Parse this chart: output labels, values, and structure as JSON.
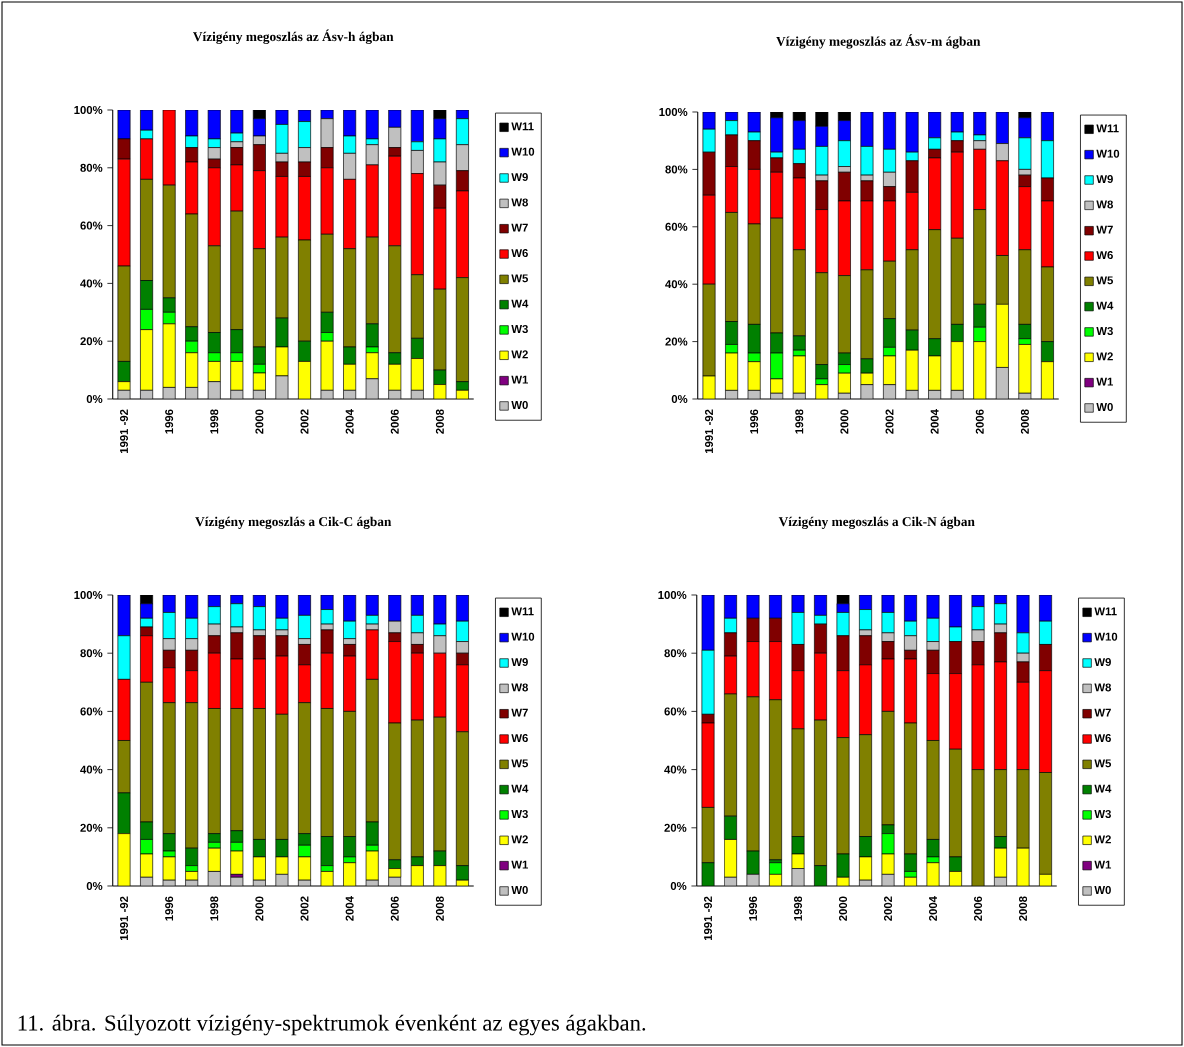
{
  "chart_data": [
    {
      "type": "bar",
      "stacked": true,
      "title": "Vízigény megoszlás az Ásv-h ágban",
      "legend": "right",
      "categories": [
        "1991 -92",
        null,
        "1996",
        null,
        "1998",
        null,
        "2000",
        null,
        "2002",
        null,
        "2004",
        null,
        "2006",
        null,
        "2008",
        null
      ],
      "ylim": [
        0,
        100
      ],
      "yticks": [
        {
          "value": 0,
          "label": "0%"
        },
        {
          "value": 20,
          "label": "20%"
        },
        {
          "value": 40,
          "label": "40%"
        },
        {
          "value": 60,
          "label": "60%"
        },
        {
          "value": 80,
          "label": "80%"
        },
        {
          "value": 100,
          "label": "100%"
        }
      ],
      "series": [
        {
          "name": "W0",
          "color": "#c0c0c0",
          "values": [
            3,
            3,
            4,
            4,
            6,
            3,
            3,
            8,
            0,
            3,
            3,
            7,
            3,
            3,
            0,
            0
          ]
        },
        {
          "name": "W1",
          "color": "#800080",
          "values": [
            0,
            0,
            0,
            0,
            0,
            0,
            0,
            0,
            0,
            0,
            0,
            0,
            0,
            0,
            0,
            0
          ]
        },
        {
          "name": "W2",
          "color": "#ffff00",
          "values": [
            3,
            21,
            22,
            12,
            7,
            10,
            6,
            10,
            13,
            17,
            9,
            9,
            9,
            11,
            5,
            3
          ]
        },
        {
          "name": "W3",
          "color": "#00ff00",
          "values": [
            0,
            7,
            4,
            4,
            3,
            3,
            3,
            0,
            0,
            3,
            0,
            2,
            0,
            0,
            0,
            0
          ]
        },
        {
          "name": "W4",
          "color": "#008000",
          "values": [
            7,
            10,
            5,
            5,
            7,
            8,
            6,
            10,
            7,
            7,
            6,
            8,
            4,
            7,
            5,
            3
          ]
        },
        {
          "name": "W5",
          "color": "#808000",
          "values": [
            33,
            35,
            39,
            39,
            30,
            41,
            34,
            28,
            35,
            27,
            34,
            30,
            37,
            22,
            28,
            36
          ]
        },
        {
          "name": "W6",
          "color": "#ff0000",
          "values": [
            37,
            14,
            26,
            18,
            27,
            16,
            27,
            21,
            22,
            23,
            24,
            25,
            31,
            35,
            28,
            30
          ]
        },
        {
          "name": "W7",
          "color": "#800000",
          "values": [
            7,
            0,
            0,
            5,
            3,
            6,
            9,
            5,
            5,
            7,
            0,
            0,
            3,
            0,
            8,
            7
          ]
        },
        {
          "name": "W8",
          "color": "#c0c0c0",
          "values": [
            0,
            0,
            0,
            0,
            4,
            2,
            3,
            3,
            5,
            10,
            9,
            7,
            7,
            8,
            8,
            9
          ]
        },
        {
          "name": "W9",
          "color": "#00ffff",
          "values": [
            0,
            3,
            0,
            4,
            3,
            3,
            0,
            10,
            9,
            0,
            6,
            2,
            0,
            3,
            8,
            9
          ]
        },
        {
          "name": "W10",
          "color": "#0000ff",
          "values": [
            10,
            7,
            0,
            9,
            10,
            8,
            6,
            5,
            4,
            3,
            9,
            10,
            6,
            11,
            7,
            3
          ]
        },
        {
          "name": "W11",
          "color": "#000000",
          "values": [
            0,
            0,
            0,
            0,
            0,
            0,
            3,
            0,
            0,
            0,
            0,
            0,
            0,
            0,
            3,
            0
          ]
        }
      ]
    },
    {
      "type": "bar",
      "stacked": true,
      "title": "Vízigény megoszlás az Ásv-m ágban",
      "legend": "right",
      "categories": [
        "1991 -92",
        null,
        "1996",
        null,
        "1998",
        null,
        "2000",
        null,
        "2002",
        null,
        "2004",
        null,
        "2006",
        null,
        "2008",
        null
      ],
      "ylim": [
        0,
        100
      ],
      "yticks": [
        {
          "value": 0,
          "label": "0%"
        },
        {
          "value": 20,
          "label": "20%"
        },
        {
          "value": 40,
          "label": "40%"
        },
        {
          "value": 60,
          "label": "60%"
        },
        {
          "value": 80,
          "label": "80%"
        },
        {
          "value": 100,
          "label": "100%"
        }
      ],
      "series": [
        {
          "name": "W0",
          "color": "#c0c0c0",
          "values": [
            0,
            3,
            3,
            2,
            2,
            0,
            2,
            5,
            5,
            3,
            3,
            3,
            0,
            11,
            2,
            0
          ]
        },
        {
          "name": "W1",
          "color": "#800080",
          "values": [
            0,
            0,
            0,
            0,
            0,
            0,
            0,
            0,
            0,
            0,
            0,
            0,
            0,
            0,
            0,
            0
          ]
        },
        {
          "name": "W2",
          "color": "#ffff00",
          "values": [
            8,
            13,
            10,
            5,
            13,
            5,
            7,
            4,
            10,
            14,
            12,
            17,
            20,
            22,
            17,
            13
          ]
        },
        {
          "name": "W3",
          "color": "#00ff00",
          "values": [
            0,
            3,
            3,
            9,
            2,
            2,
            3,
            0,
            3,
            0,
            0,
            0,
            5,
            0,
            2,
            0
          ]
        },
        {
          "name": "W4",
          "color": "#008000",
          "values": [
            0,
            8,
            10,
            7,
            5,
            5,
            4,
            5,
            10,
            7,
            6,
            6,
            8,
            0,
            5,
            7
          ]
        },
        {
          "name": "W5",
          "color": "#808000",
          "values": [
            32,
            38,
            35,
            40,
            30,
            32,
            27,
            31,
            20,
            28,
            38,
            30,
            33,
            17,
            26,
            26
          ]
        },
        {
          "name": "W6",
          "color": "#ff0000",
          "values": [
            31,
            16,
            19,
            16,
            25,
            22,
            26,
            24,
            21,
            20,
            25,
            30,
            21,
            33,
            22,
            23
          ]
        },
        {
          "name": "W7",
          "color": "#800000",
          "values": [
            15,
            11,
            10,
            5,
            5,
            10,
            10,
            7,
            5,
            11,
            3,
            4,
            0,
            0,
            4,
            8
          ]
        },
        {
          "name": "W8",
          "color": "#c0c0c0",
          "values": [
            0,
            0,
            0,
            0,
            0,
            2,
            2,
            2,
            5,
            0,
            0,
            0,
            3,
            6,
            2,
            0
          ]
        },
        {
          "name": "W9",
          "color": "#00ffff",
          "values": [
            8,
            5,
            3,
            2,
            5,
            10,
            9,
            10,
            8,
            3,
            4,
            3,
            2,
            0,
            11,
            13
          ]
        },
        {
          "name": "W10",
          "color": "#0000ff",
          "values": [
            6,
            3,
            7,
            12,
            10,
            7,
            7,
            12,
            13,
            14,
            9,
            7,
            8,
            11,
            7,
            10
          ]
        },
        {
          "name": "W11",
          "color": "#000000",
          "values": [
            0,
            0,
            0,
            2,
            3,
            5,
            3,
            0,
            0,
            0,
            0,
            0,
            0,
            0,
            2,
            0
          ]
        }
      ]
    },
    {
      "type": "bar",
      "stacked": true,
      "title": "Vízigény megoszlás a Cik-C ágban",
      "legend": "right",
      "categories": [
        "1991 -92",
        null,
        "1996",
        null,
        "1998",
        null,
        "2000",
        null,
        "2002",
        null,
        "2004",
        null,
        "2006",
        null,
        "2008",
        null
      ],
      "ylim": [
        0,
        100
      ],
      "yticks": [
        {
          "value": 0,
          "label": "0%"
        },
        {
          "value": 20,
          "label": "20%"
        },
        {
          "value": 40,
          "label": "40%"
        },
        {
          "value": 60,
          "label": "60%"
        },
        {
          "value": 80,
          "label": "80%"
        },
        {
          "value": 100,
          "label": "100%"
        }
      ],
      "series": [
        {
          "name": "W0",
          "color": "#c0c0c0",
          "values": [
            0,
            3,
            2,
            2,
            5,
            3,
            2,
            4,
            2,
            0,
            0,
            2,
            3,
            0,
            0,
            0
          ]
        },
        {
          "name": "W1",
          "color": "#800080",
          "values": [
            0,
            0,
            0,
            0,
            0,
            1,
            0,
            0,
            0,
            0,
            0,
            0,
            0,
            0,
            0,
            0
          ]
        },
        {
          "name": "W2",
          "color": "#ffff00",
          "values": [
            18,
            8,
            8,
            3,
            8,
            8,
            8,
            6,
            8,
            5,
            8,
            10,
            3,
            7,
            7,
            2
          ]
        },
        {
          "name": "W3",
          "color": "#00ff00",
          "values": [
            0,
            5,
            2,
            2,
            2,
            3,
            0,
            0,
            4,
            2,
            2,
            2,
            0,
            0,
            0,
            0
          ]
        },
        {
          "name": "W4",
          "color": "#008000",
          "values": [
            14,
            6,
            6,
            6,
            3,
            4,
            6,
            6,
            4,
            10,
            7,
            8,
            3,
            3,
            5,
            5
          ]
        },
        {
          "name": "W5",
          "color": "#808000",
          "values": [
            18,
            48,
            45,
            50,
            43,
            42,
            45,
            43,
            45,
            44,
            43,
            49,
            47,
            47,
            46,
            46
          ]
        },
        {
          "name": "W6",
          "color": "#ff0000",
          "values": [
            21,
            16,
            12,
            11,
            19,
            17,
            17,
            20,
            13,
            19,
            19,
            17,
            28,
            23,
            22,
            23
          ]
        },
        {
          "name": "W7",
          "color": "#800000",
          "values": [
            0,
            3,
            6,
            7,
            6,
            9,
            8,
            7,
            7,
            8,
            4,
            0,
            3,
            3,
            0,
            4
          ]
        },
        {
          "name": "W8",
          "color": "#c0c0c0",
          "values": [
            0,
            0,
            4,
            4,
            4,
            2,
            2,
            2,
            2,
            2,
            2,
            2,
            4,
            4,
            6,
            4
          ]
        },
        {
          "name": "W9",
          "color": "#00ffff",
          "values": [
            15,
            3,
            9,
            7,
            6,
            8,
            8,
            4,
            8,
            5,
            6,
            3,
            0,
            6,
            4,
            7
          ]
        },
        {
          "name": "W10",
          "color": "#0000ff",
          "values": [
            14,
            5,
            6,
            8,
            4,
            3,
            4,
            8,
            7,
            5,
            9,
            7,
            9,
            7,
            10,
            9
          ]
        },
        {
          "name": "W11",
          "color": "#000000",
          "values": [
            0,
            3,
            0,
            0,
            0,
            0,
            0,
            0,
            0,
            0,
            0,
            0,
            0,
            0,
            0,
            0
          ]
        }
      ]
    },
    {
      "type": "bar",
      "stacked": true,
      "title": "Vízigény megoszlás a Cik-N ágban",
      "legend": "right",
      "categories": [
        "1991 -92",
        null,
        "1996",
        null,
        "1998",
        null,
        "2000",
        null,
        "2002",
        null,
        "2004",
        null,
        "2006",
        null,
        "2008",
        null
      ],
      "ylim": [
        0,
        100
      ],
      "yticks": [
        {
          "value": 0,
          "label": "0%"
        },
        {
          "value": 20,
          "label": "20%"
        },
        {
          "value": 40,
          "label": "40%"
        },
        {
          "value": 60,
          "label": "60%"
        },
        {
          "value": 80,
          "label": "80%"
        },
        {
          "value": 100,
          "label": "100%"
        }
      ],
      "annotations": [
        "11. ábra. Súlyozott vízigény-spektrumok évenként az egyes ágakban."
      ],
      "series": [
        {
          "name": "W0",
          "color": "#c0c0c0",
          "values": [
            0,
            3,
            4,
            0,
            6,
            0,
            0,
            2,
            4,
            0,
            0,
            0,
            0,
            3,
            0,
            0
          ]
        },
        {
          "name": "W1",
          "color": "#800080",
          "values": [
            0,
            0,
            0,
            0,
            0,
            0,
            0,
            0,
            0,
            0,
            0,
            0,
            0,
            0,
            0,
            0
          ]
        },
        {
          "name": "W2",
          "color": "#ffff00",
          "values": [
            0,
            13,
            0,
            4,
            5,
            0,
            3,
            8,
            7,
            3,
            8,
            5,
            0,
            10,
            13,
            4
          ]
        },
        {
          "name": "W3",
          "color": "#00ff00",
          "values": [
            0,
            0,
            0,
            4,
            0,
            0,
            0,
            0,
            7,
            2,
            2,
            0,
            0,
            0,
            0,
            0
          ]
        },
        {
          "name": "W4",
          "color": "#008000",
          "values": [
            8,
            8,
            8,
            1,
            6,
            7,
            8,
            7,
            3,
            6,
            6,
            5,
            0,
            4,
            0,
            0
          ]
        },
        {
          "name": "W5",
          "color": "#808000",
          "values": [
            19,
            42,
            53,
            55,
            37,
            50,
            40,
            35,
            39,
            45,
            34,
            37,
            40,
            23,
            27,
            35
          ]
        },
        {
          "name": "W6",
          "color": "#ff0000",
          "values": [
            29,
            13,
            19,
            20,
            20,
            23,
            23,
            24,
            18,
            22,
            23,
            26,
            36,
            37,
            30,
            35
          ]
        },
        {
          "name": "W7",
          "color": "#800000",
          "values": [
            3,
            8,
            8,
            8,
            9,
            10,
            12,
            10,
            6,
            3,
            8,
            11,
            8,
            10,
            7,
            9
          ]
        },
        {
          "name": "W8",
          "color": "#c0c0c0",
          "values": [
            0,
            0,
            0,
            0,
            0,
            0,
            0,
            2,
            3,
            5,
            3,
            0,
            4,
            3,
            3,
            0
          ]
        },
        {
          "name": "W9",
          "color": "#00ffff",
          "values": [
            22,
            5,
            0,
            0,
            11,
            3,
            8,
            7,
            7,
            5,
            8,
            5,
            8,
            7,
            7,
            8
          ]
        },
        {
          "name": "W10",
          "color": "#0000ff",
          "values": [
            19,
            8,
            8,
            8,
            6,
            7,
            3,
            5,
            6,
            9,
            8,
            11,
            4,
            3,
            13,
            9
          ]
        },
        {
          "name": "W11",
          "color": "#000000",
          "values": [
            0,
            0,
            0,
            0,
            0,
            0,
            3,
            0,
            0,
            0,
            0,
            0,
            0,
            0,
            0,
            0
          ]
        }
      ]
    }
  ]
}
